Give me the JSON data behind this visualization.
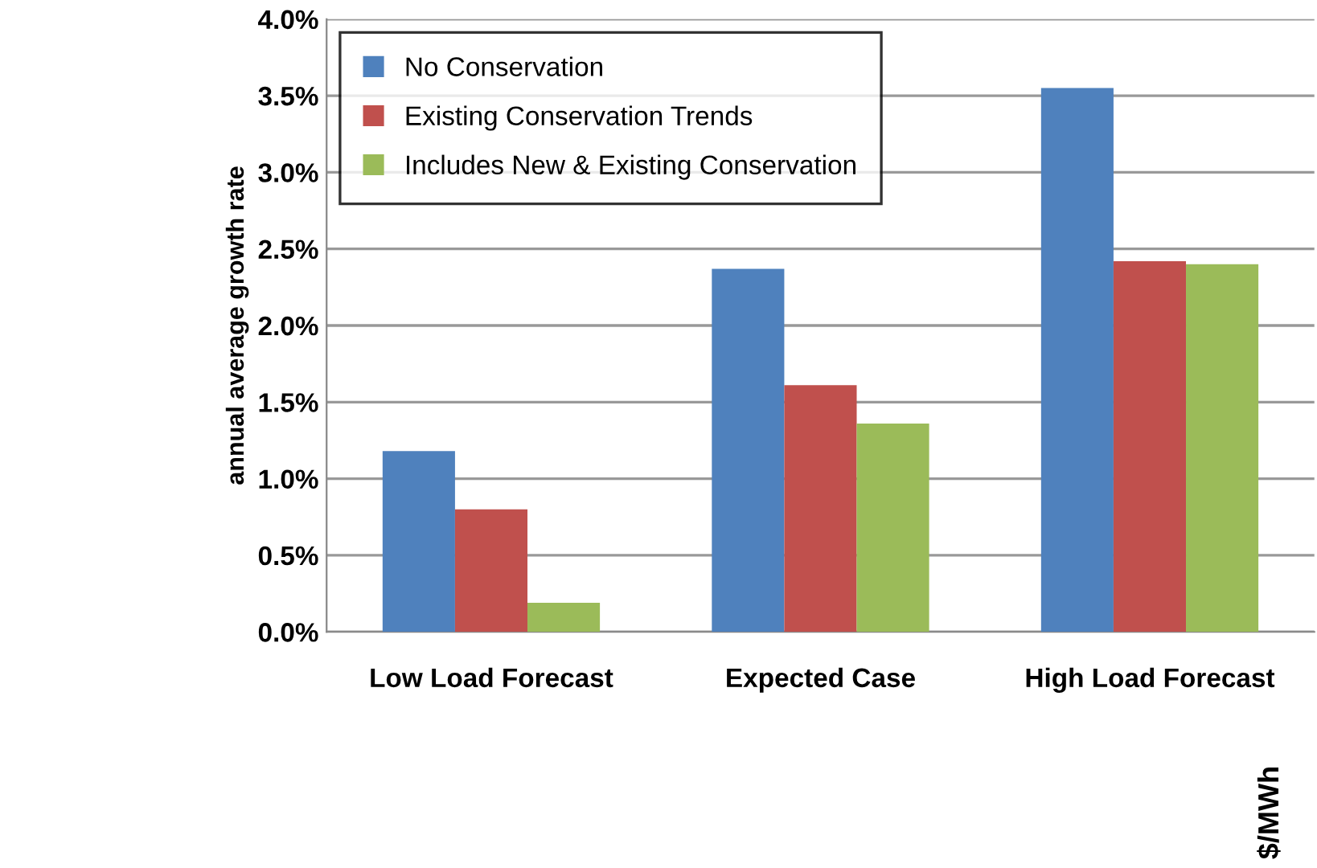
{
  "chart_data": {
    "type": "bar",
    "ylabel": "annual average growth rate",
    "categories": [
      "Low Load Forecast",
      "Expected Case",
      "High Load Forecast"
    ],
    "series": [
      {
        "name": "No Conservation",
        "color": "#4f81bd",
        "values": [
          1.18,
          2.37,
          3.55
        ]
      },
      {
        "name": "Existing Conservation Trends",
        "color": "#c0504d",
        "values": [
          0.8,
          1.61,
          2.42
        ]
      },
      {
        "name": "Includes New & Existing Conservation",
        "color": "#9bbb59",
        "values": [
          0.19,
          1.36,
          2.4
        ]
      }
    ],
    "ylim": [
      0,
      4.0
    ],
    "yticks": [
      {
        "value": 0,
        "label": "0.0%"
      },
      {
        "value": 0.5,
        "label": "0.5%"
      },
      {
        "value": 1.0,
        "label": "1.0%"
      },
      {
        "value": 1.5,
        "label": "1.5%"
      },
      {
        "value": 2.0,
        "label": "2.0%"
      },
      {
        "value": 2.5,
        "label": "2.5%"
      },
      {
        "value": 3.0,
        "label": "3.0%"
      },
      {
        "value": 3.5,
        "label": "3.5%"
      },
      {
        "value": 4.0,
        "label": "4.0%"
      }
    ],
    "grid": "y",
    "legend": "top left",
    "annotations": [
      "$/MWh"
    ]
  }
}
